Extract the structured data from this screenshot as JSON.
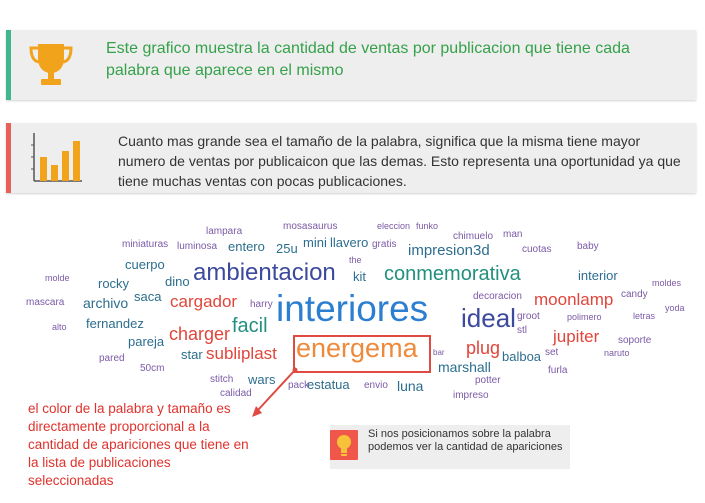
{
  "info_box_1": {
    "icon": "trophy-icon",
    "accent_color": "#3fb68f",
    "text": "Este grafico muestra la cantidad de ventas por publicacion que tiene cada palabra que aparece en el mismo"
  },
  "info_box_2": {
    "icon": "bar-chart-icon",
    "accent_color": "#e8605a",
    "text": "Cuanto mas grande sea el tamaño de la palabra, significa que la misma tiene mayor numero de ventas por publicaicon que las demas. Esto representa una oportunidad ya que tiene muchas ventas con pocas publicaciones."
  },
  "word_cloud": {
    "words": [
      {
        "text": "lampara",
        "color": "#7b5aa6"
      },
      {
        "text": "mosasaurus",
        "color": "#7b5aa6"
      },
      {
        "text": "eleccion",
        "color": "#7b5aa6"
      },
      {
        "text": "funko",
        "color": "#7b5aa6"
      },
      {
        "text": "chimuelo",
        "color": "#7b5aa6"
      },
      {
        "text": "man",
        "color": "#7b5aa6"
      },
      {
        "text": "miniaturas",
        "color": "#7b5aa6"
      },
      {
        "text": "luminosa",
        "color": "#7b5aa6"
      },
      {
        "text": "entero",
        "color": "#2d6e8e"
      },
      {
        "text": "25u",
        "color": "#2d6e8e"
      },
      {
        "text": "mini",
        "color": "#2d6e8e"
      },
      {
        "text": "llavero",
        "color": "#2d6e8e"
      },
      {
        "text": "gratis",
        "color": "#7b5aa6"
      },
      {
        "text": "impresion3d",
        "color": "#2d6e8e"
      },
      {
        "text": "cuotas",
        "color": "#7b5aa6"
      },
      {
        "text": "baby",
        "color": "#7b5aa6"
      },
      {
        "text": "cuerpo",
        "color": "#2d6e8e"
      },
      {
        "text": "the",
        "color": "#7b5aa6"
      },
      {
        "text": "molde",
        "color": "#7b5aa6"
      },
      {
        "text": "rocky",
        "color": "#2d6e8e"
      },
      {
        "text": "dino",
        "color": "#2d6e8e"
      },
      {
        "text": "ambientacion",
        "color": "#3c4a9e"
      },
      {
        "text": "kit",
        "color": "#2d6e8e"
      },
      {
        "text": "conmemorativa",
        "color": "#23907e"
      },
      {
        "text": "interior",
        "color": "#2d6e8e"
      },
      {
        "text": "moldes",
        "color": "#7b5aa6"
      },
      {
        "text": "mascara",
        "color": "#7b5aa6"
      },
      {
        "text": "archivo",
        "color": "#2d6e8e"
      },
      {
        "text": "saca",
        "color": "#2d6e8e"
      },
      {
        "text": "cargador",
        "color": "#e0463b"
      },
      {
        "text": "harry",
        "color": "#7b5aa6"
      },
      {
        "text": "decoracion",
        "color": "#7b5aa6"
      },
      {
        "text": "moonlamp",
        "color": "#e0463b"
      },
      {
        "text": "candy",
        "color": "#7b5aa6"
      },
      {
        "text": "yoda",
        "color": "#7b5aa6"
      },
      {
        "text": "alto",
        "color": "#7b5aa6"
      },
      {
        "text": "fernandez",
        "color": "#2d6e8e"
      },
      {
        "text": "interiores",
        "color": "#2c7fd0"
      },
      {
        "text": "ideal",
        "color": "#3c4a9e"
      },
      {
        "text": "groot",
        "color": "#7b5aa6"
      },
      {
        "text": "stl",
        "color": "#7b5aa6"
      },
      {
        "text": "polimero",
        "color": "#7b5aa6"
      },
      {
        "text": "letras",
        "color": "#7b5aa6"
      },
      {
        "text": "pareja",
        "color": "#2d6e8e"
      },
      {
        "text": "charger",
        "color": "#e0463b"
      },
      {
        "text": "facil",
        "color": "#23907e"
      },
      {
        "text": "jupiter",
        "color": "#e0463b"
      },
      {
        "text": "soporte",
        "color": "#7b5aa6"
      },
      {
        "text": "pared",
        "color": "#7b5aa6"
      },
      {
        "text": "star",
        "color": "#2d6e8e"
      },
      {
        "text": "subliplast",
        "color": "#e0463b"
      },
      {
        "text": "energema",
        "color": "#ee8a3c"
      },
      {
        "text": "plug",
        "color": "#e0463b"
      },
      {
        "text": "set",
        "color": "#7b5aa6"
      },
      {
        "text": "balboa",
        "color": "#2d6e8e"
      },
      {
        "text": "naruto",
        "color": "#7b5aa6"
      },
      {
        "text": "50cm",
        "color": "#7b5aa6"
      },
      {
        "text": "bar",
        "color": "#7b5aa6"
      },
      {
        "text": "marshall",
        "color": "#2d6e8e"
      },
      {
        "text": "furla",
        "color": "#7b5aa6"
      },
      {
        "text": "stitch",
        "color": "#7b5aa6"
      },
      {
        "text": "wars",
        "color": "#2d6e8e"
      },
      {
        "text": "pack",
        "color": "#7b5aa6"
      },
      {
        "text": "estatua",
        "color": "#2d6e8e"
      },
      {
        "text": "envio",
        "color": "#7b5aa6"
      },
      {
        "text": "luna",
        "color": "#2d6e8e"
      },
      {
        "text": "potter",
        "color": "#7b5aa6"
      },
      {
        "text": "calidad",
        "color": "#7b5aa6"
      },
      {
        "text": "impreso",
        "color": "#7b5aa6"
      }
    ]
  },
  "annotation": {
    "text": "el color de la palabra y tamaño es directamente proporcional a la cantidad de apariciones que tiene en la lista de publicaciones seleccionadas",
    "color": "#e0322c"
  },
  "tip": {
    "icon": "lightbulb-icon",
    "text": "Si nos posicionamos sobre la palabra podemos ver la cantidad de apariciones"
  }
}
